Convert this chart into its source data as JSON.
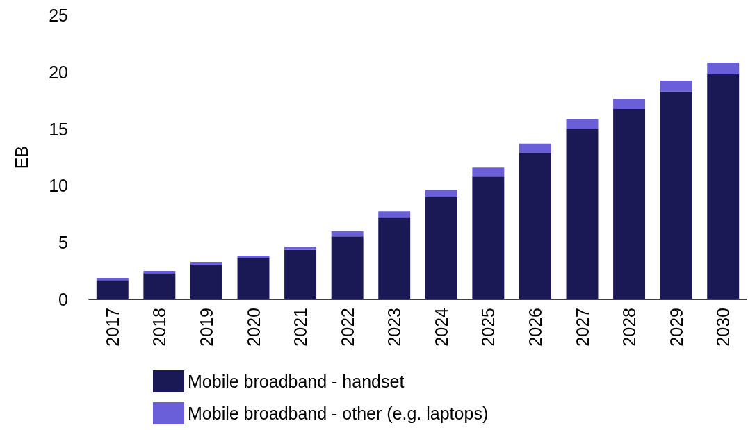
{
  "chart_data": {
    "type": "bar",
    "stacked": true,
    "ylabel": "EB",
    "categories": [
      "2017",
      "2018",
      "2019",
      "2020",
      "2021",
      "2022",
      "2023",
      "2024",
      "2025",
      "2026",
      "2027",
      "2028",
      "2029",
      "2030"
    ],
    "series": [
      {
        "name": "Mobile broadband - handset",
        "color": "#1b1856",
        "values": [
          1.7,
          2.3,
          3.05,
          3.6,
          4.35,
          5.55,
          7.2,
          9.0,
          10.8,
          12.9,
          15.0,
          16.75,
          18.3,
          19.8
        ]
      },
      {
        "name": "Mobile broadband - other (e.g. laptops)",
        "color": "#6a5fd8",
        "values": [
          0.2,
          0.2,
          0.25,
          0.25,
          0.3,
          0.45,
          0.55,
          0.65,
          0.8,
          0.8,
          0.85,
          0.9,
          0.95,
          1.05
        ]
      }
    ],
    "ylim": [
      0,
      25
    ],
    "yticks": [
      0,
      5,
      10,
      15,
      20,
      25
    ],
    "grid": false,
    "legend": "bottom"
  }
}
